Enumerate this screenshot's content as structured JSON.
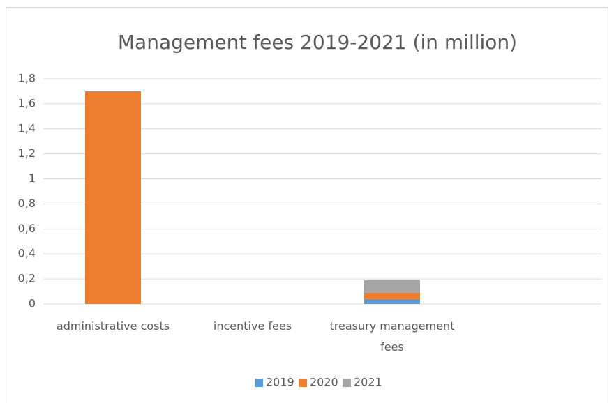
{
  "chart_data": {
    "type": "stacked_bar",
    "title": "Management fees 2019-2021 (in million)",
    "categories": [
      "administrative costs",
      "incentive fees",
      "treasury management fees",
      null
    ],
    "series": [
      {
        "name": "2019",
        "color": "#5b9bd5",
        "values": [
          0,
          0,
          0.04,
          null
        ]
      },
      {
        "name": "2020",
        "color": "#ed7d31",
        "values": [
          1.7,
          0,
          0.05,
          null
        ]
      },
      {
        "name": "2021",
        "color": "#a5a5a5",
        "values": [
          0,
          0,
          0.1,
          null
        ]
      }
    ],
    "ylim": [
      0,
      1.8
    ],
    "yticks": [
      0,
      {
        "value": 0.2,
        "label": "0,2"
      },
      {
        "value": 0.4,
        "label": "0,4"
      },
      {
        "value": 0.6,
        "label": "0,6"
      },
      {
        "value": 0.8,
        "label": "0,8"
      },
      1,
      {
        "value": 1.2,
        "label": "1,2"
      },
      {
        "value": 1.4,
        "label": "1,4"
      },
      {
        "value": 1.6,
        "label": "1,6"
      },
      {
        "value": 1.8,
        "label": "1,8"
      }
    ],
    "grid": true,
    "legend": "bottom"
  }
}
